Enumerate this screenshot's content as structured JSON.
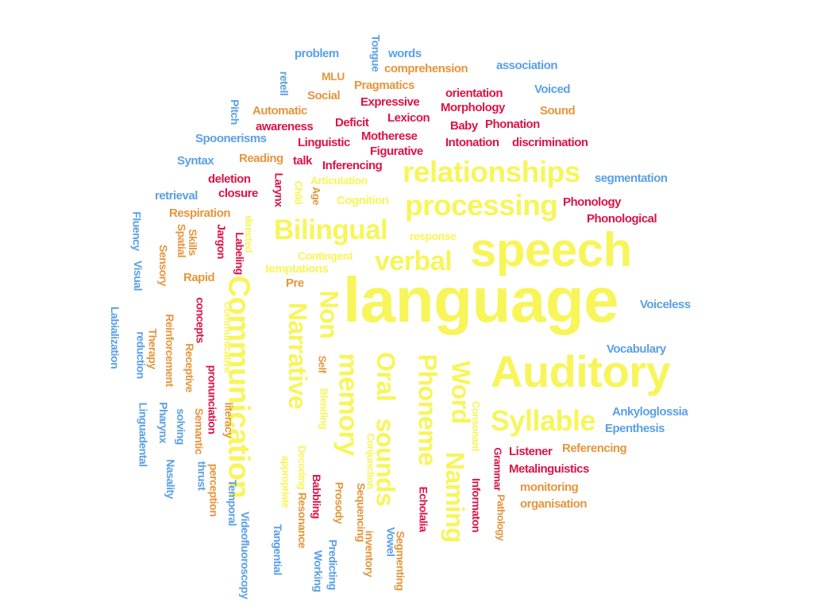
{
  "palette": {
    "yellow": "#f7f55a",
    "blue": "#5aa0e6",
    "orange": "#e5963c",
    "red": "#dc1446"
  },
  "words": {
    "language": "language",
    "speech": "speech",
    "auditory": "Auditory",
    "communication": "Communication",
    "relationships": "relationships",
    "processing": "processing",
    "bilingual": "Bilingual",
    "verbal": "verbal",
    "syllable": "Syllable",
    "narrative": "Narrative",
    "non": "Non",
    "memory": "memory",
    "oral": "Oral",
    "sounds": "sounds",
    "phoneme": "Phoneme",
    "word": "Word",
    "naming": "Naming",
    "problem": "problem",
    "tongue": "Tongue",
    "words": "words",
    "comprehension": "comprehension",
    "association": "association",
    "mlu": "MLU",
    "retell": "retell",
    "pragmatics": "Pragmatics",
    "voiced": "Voiced",
    "social": "Social",
    "orientation": "orientation",
    "expressive": "Expressive",
    "morphology": "Morphology",
    "sound": "Sound",
    "pitch": "Pitch",
    "automatic": "Automatic",
    "lexicon": "Lexicon",
    "deficit": "Deficit",
    "baby": "Baby",
    "phonation": "Phonation",
    "awareness": "awareness",
    "motherese": "Motherese",
    "spoonerisms": "Spoonerisms",
    "linguistic": "Linguistic",
    "intonation": "Intonation",
    "discrimination": "discrimination",
    "figurative": "Figurative",
    "syntax": "Syntax",
    "reading": "Reading",
    "talk": "talk",
    "inferencing": "Inferencing",
    "segmentation": "segmentation",
    "deletion": "deletion",
    "larynx": "Larynx",
    "articulation": "Articulation",
    "retrieval": "retrieval",
    "closure": "closure",
    "child": "Child",
    "age": "Age",
    "cognition": "Cognition",
    "phonology": "Phonology",
    "respiration": "Respiration",
    "phonological": "Phonological",
    "fluency": "Fluency",
    "directed": "directed",
    "skills": "Skills",
    "spatial": "Spatial",
    "jargon": "Jargon",
    "labeling": "Labeling",
    "response": "response",
    "sensory": "Sensory",
    "contingent": "Contingent",
    "visual": "Visual",
    "temptations": "temptations",
    "rapid": "Rapid",
    "pre": "Pre",
    "voiceless": "Voiceless",
    "labialization": "Labialization",
    "concepts": "concepts",
    "communicative": "Communicative",
    "reinforcement": "Reinforcement",
    "therapy": "Therapy",
    "reduction": "reduction",
    "receptive": "Receptive",
    "pronunciation": "pronunciation",
    "self": "Self",
    "blending": "Blending",
    "vocabulary": "Vocabulary",
    "consonant": "Consonant",
    "ankyloglossia": "Ankyloglossia",
    "epenthesis": "Epenthesis",
    "linguadental": "Linguadental",
    "pharynx": "Pharynx",
    "solving": "solving",
    "semantic": "Semantic",
    "literacy": "literacy",
    "decoding": "Decoding",
    "conjunction": "Conjunction",
    "listener": "Listener",
    "referencing": "Referencing",
    "grammar": "Grammar",
    "metalinguistics": "Metalinguistics",
    "nasality": "Nasality",
    "thrust": "thrust",
    "perception": "perception",
    "appropriate": "appropriate",
    "babbling": "Babbling",
    "resonance": "Resonance",
    "prosody": "Prosody",
    "sequencing": "Sequencing",
    "informaton": "Informaton",
    "monitoring": "monitoring",
    "pathology": "Pathology",
    "organisation": "organisation",
    "echolalia": "Echolalia",
    "temporal": "Temporal",
    "videofluoroscopy": "Videofluoroscopy",
    "tangential": "Tangential",
    "working": "Working",
    "predicting": "Predicting",
    "inventory": "inventory",
    "vowel": "Vowel",
    "segmenting": "Segmenting"
  }
}
